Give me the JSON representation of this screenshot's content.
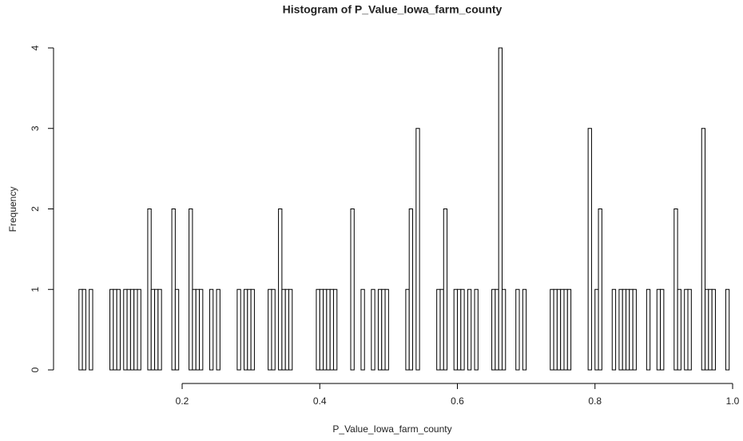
{
  "chart_data": {
    "type": "histogram",
    "title": "Histogram of P_Value_Iowa_farm_county",
    "x_label": "P_Value_Iowa_farm_county",
    "y_label": "Frequency",
    "bins": [
      0.05,
      0.055,
      0.06,
      0.065,
      0.07,
      0.075,
      0.08,
      0.085,
      0.09,
      0.095,
      0.1,
      0.105,
      0.11,
      0.115,
      0.12,
      0.125,
      0.13,
      0.135,
      0.14,
      0.145,
      0.15,
      0.155,
      0.16,
      0.165,
      0.17,
      0.175,
      0.18,
      0.185,
      0.19,
      0.195,
      0.2,
      0.205,
      0.21,
      0.215,
      0.22,
      0.225,
      0.23,
      0.235,
      0.24,
      0.245,
      0.25,
      0.255,
      0.26,
      0.265,
      0.27,
      0.275,
      0.28,
      0.285,
      0.29,
      0.295,
      0.3,
      0.305,
      0.31,
      0.315,
      0.32,
      0.325,
      0.33,
      0.335,
      0.34,
      0.345,
      0.35,
      0.355,
      0.36,
      0.365,
      0.37,
      0.375,
      0.38,
      0.385,
      0.39,
      0.395,
      0.4,
      0.405,
      0.41,
      0.415,
      0.42,
      0.425,
      0.43,
      0.435,
      0.44,
      0.445,
      0.45,
      0.455,
      0.46,
      0.465,
      0.47,
      0.475,
      0.48,
      0.485,
      0.49,
      0.495,
      0.5,
      0.505,
      0.51,
      0.515,
      0.52,
      0.525,
      0.53,
      0.535,
      0.54,
      0.545,
      0.55,
      0.555,
      0.56,
      0.565,
      0.57,
      0.575,
      0.58,
      0.585,
      0.59,
      0.595,
      0.6,
      0.605,
      0.61,
      0.615,
      0.62,
      0.625,
      0.63,
      0.635,
      0.64,
      0.645,
      0.65,
      0.655,
      0.66,
      0.665,
      0.67,
      0.675,
      0.68,
      0.685,
      0.69,
      0.695,
      0.7,
      0.705,
      0.71,
      0.715,
      0.72,
      0.725,
      0.73,
      0.735,
      0.74,
      0.745,
      0.75,
      0.755,
      0.76,
      0.765,
      0.77,
      0.775,
      0.78,
      0.785,
      0.79,
      0.795,
      0.8,
      0.805,
      0.81,
      0.815,
      0.82,
      0.825,
      0.83,
      0.835,
      0.84,
      0.845,
      0.85,
      0.855,
      0.86,
      0.865,
      0.87,
      0.875,
      0.88,
      0.885,
      0.89,
      0.895,
      0.9,
      0.905,
      0.91,
      0.915,
      0.92,
      0.925,
      0.93,
      0.935,
      0.94,
      0.945,
      0.95,
      0.955,
      0.96,
      0.965,
      0.97,
      0.975,
      0.98,
      0.985,
      0.99,
      0.995,
      1
    ],
    "values": [
      1,
      1,
      0,
      1,
      0,
      0,
      0,
      0,
      0,
      1,
      1,
      1,
      0,
      1,
      1,
      1,
      1,
      1,
      0,
      0,
      2,
      1,
      1,
      1,
      0,
      0,
      0,
      2,
      1,
      0,
      0,
      0,
      2,
      1,
      1,
      1,
      0,
      0,
      1,
      0,
      1,
      0,
      0,
      0,
      0,
      0,
      1,
      0,
      1,
      1,
      1,
      0,
      0,
      0,
      0,
      1,
      1,
      0,
      2,
      1,
      1,
      1,
      0,
      0,
      0,
      0,
      0,
      0,
      0,
      1,
      1,
      1,
      1,
      1,
      1,
      0,
      0,
      0,
      0,
      2,
      0,
      0,
      1,
      0,
      0,
      1,
      0,
      1,
      1,
      1,
      0,
      0,
      0,
      0,
      0,
      1,
      2,
      0,
      3,
      0,
      0,
      0,
      0,
      0,
      1,
      1,
      2,
      0,
      0,
      1,
      1,
      1,
      0,
      1,
      0,
      1,
      0,
      0,
      0,
      0,
      1,
      1,
      4,
      1,
      0,
      0,
      0,
      1,
      0,
      1,
      0,
      0,
      0,
      0,
      0,
      0,
      0,
      1,
      1,
      1,
      1,
      1,
      1,
      0,
      0,
      0,
      0,
      0,
      3,
      0,
      1,
      2,
      0,
      0,
      0,
      1,
      0,
      1,
      1,
      1,
      1,
      1,
      0,
      0,
      0,
      1,
      0,
      0,
      1,
      1,
      0,
      0,
      0,
      2,
      1,
      0,
      1,
      1,
      0,
      0,
      0,
      3,
      1,
      1,
      1,
      0,
      0,
      0,
      1,
      0
    ],
    "color": "#ffffff",
    "xlim": [
      0.05,
      1
    ],
    "xticks": [
      0.2,
      0.4,
      0.6,
      0.8,
      {
        "value": 1,
        "label": "1.0"
      }
    ],
    "ylim": [
      0,
      4
    ],
    "yticks": [
      0,
      1,
      2,
      3,
      4
    ]
  }
}
